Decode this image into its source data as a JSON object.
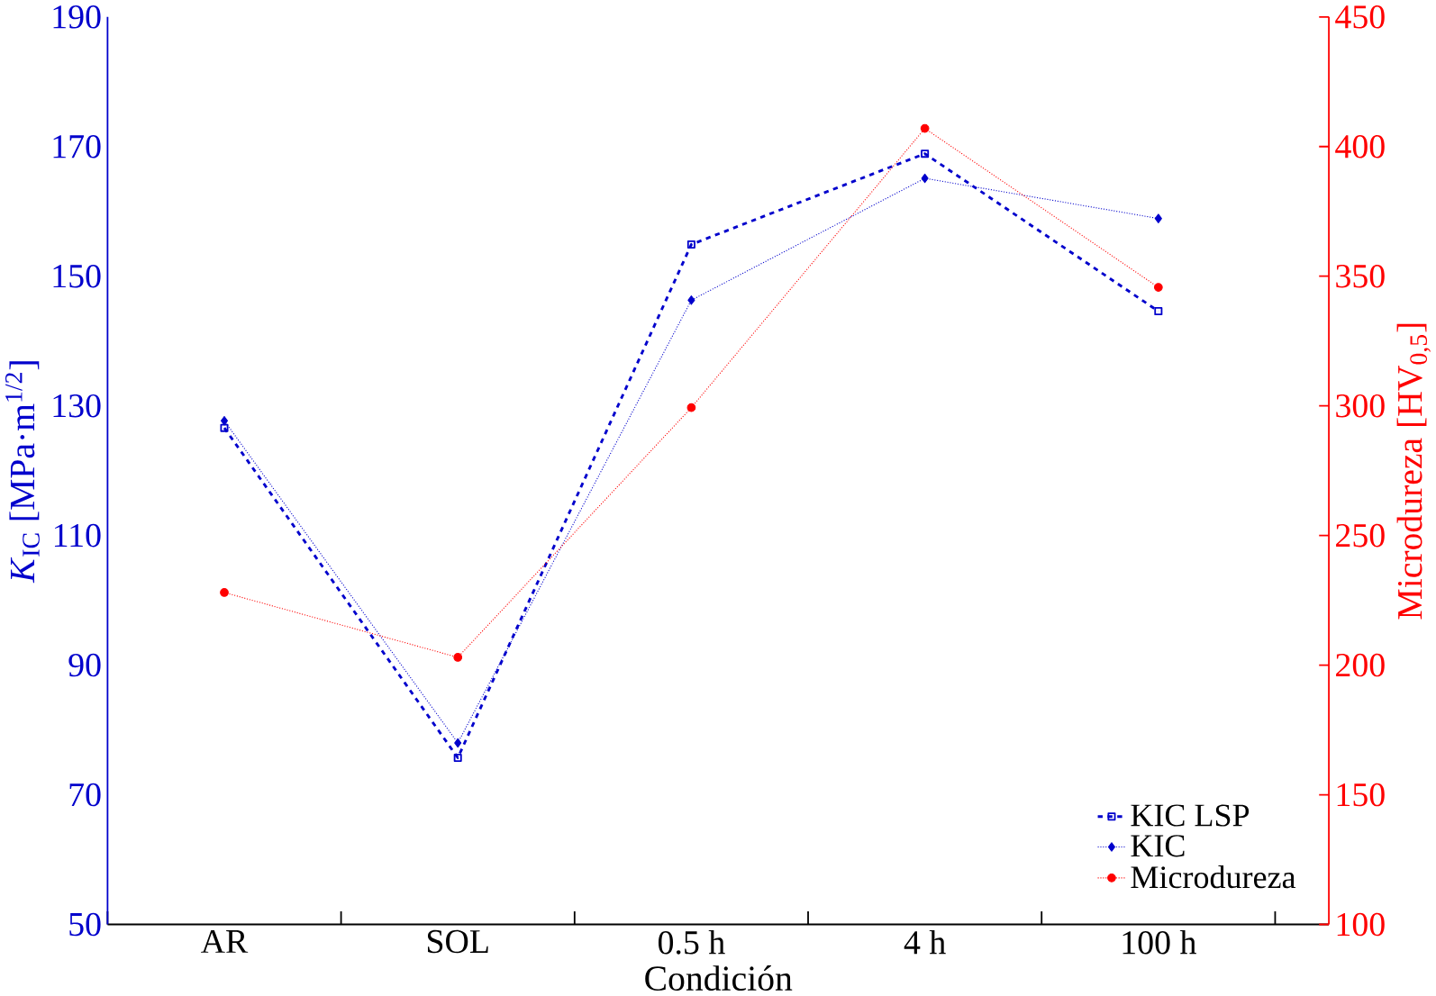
{
  "chart_data": {
    "type": "line",
    "xlabel": "Condición",
    "ylabel": "*K*$_{IC}$ [MPa·m$^{1/2}$]",
    "y2label": "Microdureza [HV$_{0,5}$]",
    "categories": [
      "AR",
      "SOL",
      "0.5 h",
      "4 h",
      "100 h"
    ],
    "series": [
      {
        "name": "KIC LSP",
        "color": "#0000cc",
        "values": [
          126.6,
          75.7,
          154.9,
          168.9,
          144.6
        ],
        "marker": "square",
        "line_style": "dashed"
      },
      {
        "name": "KIC",
        "color": "#0000cc",
        "values": [
          127.7,
          78,
          146.3,
          165.1,
          158.9
        ],
        "marker": "diamond",
        "line_style": "dotted"
      },
      {
        "name": "Microdureza",
        "color": "#ff0000",
        "values": [
          228,
          203,
          299.3,
          407,
          345.7
        ],
        "marker": "circle",
        "line_style": "dotted",
        "axis": "y2"
      }
    ],
    "ylim": [
      50,
      190
    ],
    "yticks": [
      50,
      70,
      90,
      110,
      130,
      150,
      170,
      190
    ],
    "y2lim": [
      100,
      450
    ],
    "y2ticks": [
      100,
      150,
      200,
      250,
      300,
      350,
      400,
      450
    ],
    "legend": "bottom right",
    "grid": false
  }
}
